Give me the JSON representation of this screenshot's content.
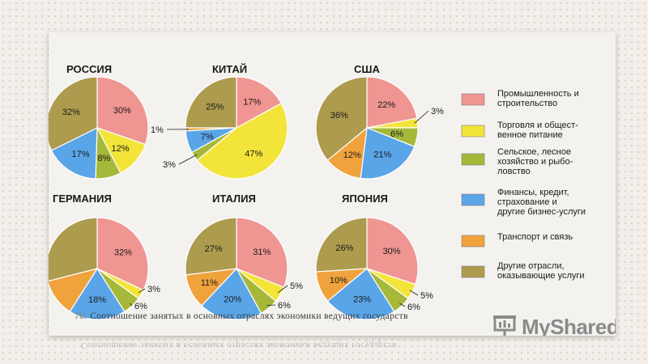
{
  "caption": {
    "number": "76.",
    "text": "Соотношение занятых в основных отраслях экономики ведущих государств"
  },
  "logo": {
    "text": "MyShared"
  },
  "legend": [
    {
      "label_lines": [
        "Промышленность и",
        "строительство"
      ],
      "color": "#ef9592"
    },
    {
      "label_lines": [
        "Торговля и общест-",
        "венное питание"
      ],
      "color": "#f3e43a"
    },
    {
      "label_lines": [
        "Сельское, лесное",
        "хозяйство и рыбо-",
        "ловство"
      ],
      "color": "#a6b83a"
    },
    {
      "label_lines": [
        "Финансы, кредит,",
        "страхование и",
        "другие бизнес-услуги"
      ],
      "color": "#5aa5e8"
    },
    {
      "label_lines": [
        "Транспорт и связь"
      ],
      "color": "#f0a23c"
    },
    {
      "label_lines": [
        "Другие отрасли,",
        "оказывающие услуги"
      ],
      "color": "#ad9b4e"
    }
  ],
  "chart_data": [
    {
      "type": "pie",
      "title": "РОССИЯ",
      "slices": [
        {
          "category": "Промышленность и строительство",
          "value": 30,
          "label": "30%"
        },
        {
          "category": "Торговля и общественное питание",
          "value": 12,
          "label": "12%"
        },
        {
          "category": "Сельское, лесное хозяйство и рыболовство",
          "value": 8,
          "label": "8%"
        },
        {
          "category": "Финансы, кредит, страхование и другие бизнес-услуги",
          "value": 17,
          "label": "17%"
        },
        {
          "category": "Другие отрасли, оказывающие услуги",
          "value": 32,
          "label": "32%"
        }
      ]
    },
    {
      "type": "pie",
      "title": "КИТАЙ",
      "slices": [
        {
          "category": "Промышленность и строительство",
          "value": 17,
          "label": "17%"
        },
        {
          "category": "Торговля и общественное питание",
          "value": 47,
          "label": "47%"
        },
        {
          "category": "Сельское, лесное хозяйство и рыболовство",
          "value": 3,
          "label": "3%"
        },
        {
          "category": "Финансы, кредит, страхование и другие бизнес-услуги",
          "value": 7,
          "label": "7%"
        },
        {
          "category": "Транспорт и связь",
          "value": 1,
          "label": "1%"
        },
        {
          "category": "Другие отрасли, оказывающие услуги",
          "value": 25,
          "label": "25%"
        }
      ]
    },
    {
      "type": "pie",
      "title": "США",
      "slices": [
        {
          "category": "Промышленность и строительство",
          "value": 22,
          "label": "22%"
        },
        {
          "category": "Торговля и общественное питание",
          "value": 3,
          "label": "3%"
        },
        {
          "category": "Сельское, лесное хозяйство и рыболовство",
          "value": 6,
          "label": "6%"
        },
        {
          "category": "Финансы, кредит, страхование и другие бизнес-услуги",
          "value": 21,
          "label": "21%"
        },
        {
          "category": "Транспорт и связь",
          "value": 12,
          "label": "12%"
        },
        {
          "category": "Другие отрасли, оказывающие услуги",
          "value": 36,
          "label": "36%"
        }
      ]
    },
    {
      "type": "pie",
      "title": "ГЕРМАНИЯ",
      "slices": [
        {
          "category": "Промышленность и строительство",
          "value": 32,
          "label": "32%"
        },
        {
          "category": "Торговля и общественное питание",
          "value": 3,
          "label": "3%"
        },
        {
          "category": "Сельское, лесное хозяйство и рыболовство",
          "value": 6,
          "label": "6%"
        },
        {
          "category": "Финансы, кредит, страхование и другие бизнес-услуги",
          "value": 18,
          "label": "18%"
        },
        {
          "category": "Транспорт и связь",
          "value": 12,
          "label": ""
        },
        {
          "category": "Другие отрасли, оказывающие услуги",
          "value": 29,
          "label": ""
        }
      ]
    },
    {
      "type": "pie",
      "title": "ИТАЛИЯ",
      "slices": [
        {
          "category": "Промышленность и строительство",
          "value": 31,
          "label": "31%"
        },
        {
          "category": "Торговля и общественное питание",
          "value": 5,
          "label": "5%"
        },
        {
          "category": "Сельское, лесное хозяйство и рыболовство",
          "value": 6,
          "label": "6%"
        },
        {
          "category": "Финансы, кредит, страхование и другие бизнес-услуги",
          "value": 20,
          "label": "20%"
        },
        {
          "category": "Транспорт и связь",
          "value": 11,
          "label": "11%"
        },
        {
          "category": "Другие отрасли, оказывающие услуги",
          "value": 27,
          "label": "27%"
        }
      ]
    },
    {
      "type": "pie",
      "title": "ЯПОНИЯ",
      "slices": [
        {
          "category": "Промышленность и строительство",
          "value": 30,
          "label": "30%"
        },
        {
          "category": "Торговля и общественное питание",
          "value": 5,
          "label": "5%"
        },
        {
          "category": "Сельское, лесное хозяйство и рыболовство",
          "value": 6,
          "label": "6%"
        },
        {
          "category": "Финансы, кредит, страхование и другие бизнес-услуги",
          "value": 23,
          "label": "23%"
        },
        {
          "category": "Транспорт и связь",
          "value": 10,
          "label": "10%"
        },
        {
          "category": "Другие отрасли, оказывающие услуги",
          "value": 26,
          "label": "26%"
        }
      ]
    }
  ]
}
